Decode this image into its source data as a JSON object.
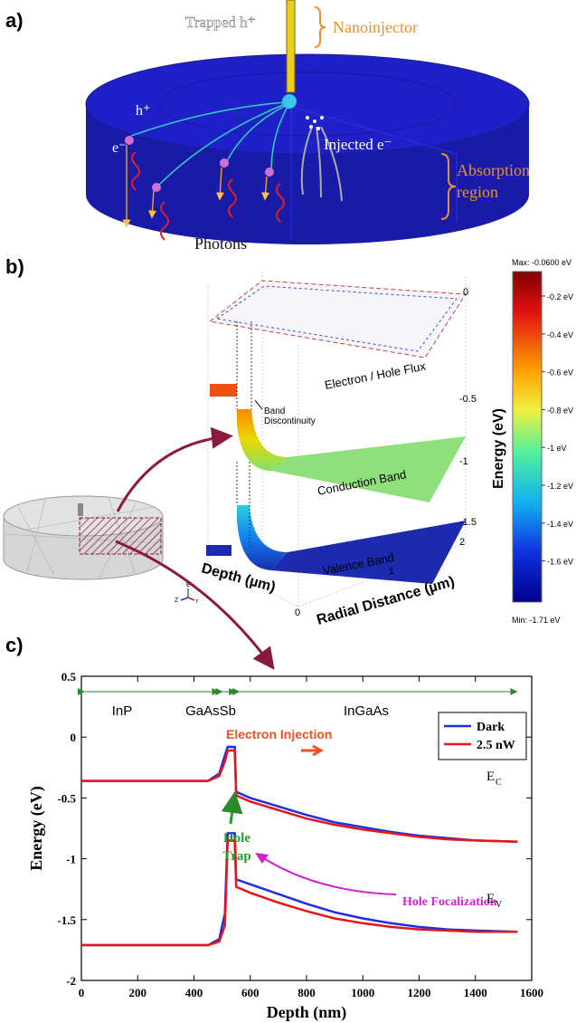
{
  "panel_a": {
    "label": "a)",
    "trapped": "Trapped h⁺",
    "nanoinjector": "Nanoinjector",
    "hole": "h⁺",
    "electron": "e⁻",
    "injected": "Injected e⁻",
    "absorption": [
      "Absorption",
      "region"
    ],
    "photons": "Photons"
  },
  "panel_b": {
    "label": "b)",
    "flux": "Electron / Hole Flux",
    "discontinuity": [
      "Band",
      "Discontinuity"
    ],
    "conduction": "Conduction Band",
    "valence": "Valence Band",
    "depth_axis": "Depth (µm)",
    "radial_axis": "Radial Distance (µm)",
    "energy_axis": "Energy (eV)",
    "energy_ticks": [
      "0",
      "-0.5",
      "-1",
      "-1.5"
    ],
    "radial_ticks": [
      "0",
      "1",
      "2"
    ],
    "triad": [
      "Z",
      "E",
      "r"
    ],
    "colorbar": {
      "max": "Max: -0.0600 eV",
      "min": "Min: -1.71 eV",
      "labels": [
        "-0.2 eV",
        "-0.4 eV",
        "-0.6 eV",
        "-0.8 eV",
        "-1 eV",
        "-1.2 eV",
        "-1.4 eV",
        "-1.6 eV"
      ]
    }
  },
  "panel_c": {
    "label": "c)"
  },
  "chart_data": {
    "type": "line",
    "xlabel": "Depth (nm)",
    "ylabel": "Energy (eV)",
    "x": [
      0,
      450,
      490,
      510,
      520,
      545,
      550,
      600,
      700,
      800,
      900,
      1000,
      1100,
      1200,
      1300,
      1400,
      1550
    ],
    "series": [
      {
        "name": "Dark",
        "color": "#1c2fe0",
        "values": [
          -0.36,
          -0.36,
          -0.3,
          -0.15,
          -0.08,
          -0.08,
          -0.45,
          -0.5,
          -0.57,
          -0.64,
          -0.7,
          -0.74,
          -0.78,
          -0.81,
          -0.83,
          -0.85,
          -0.86
        ]
      },
      {
        "name": "2.5 nW",
        "color": "#e8141c",
        "values": [
          -0.36,
          -0.36,
          -0.32,
          -0.2,
          -0.11,
          -0.11,
          -0.48,
          -0.53,
          -0.6,
          -0.67,
          -0.72,
          -0.76,
          -0.79,
          -0.82,
          -0.84,
          -0.85,
          -0.86
        ]
      },
      {
        "color": "#1c2fe0",
        "values": [
          -1.71,
          -1.71,
          -1.66,
          -1.45,
          -0.79,
          -0.79,
          -1.17,
          -1.21,
          -1.29,
          -1.37,
          -1.44,
          -1.49,
          -1.53,
          -1.56,
          -1.58,
          -1.59,
          -1.6
        ]
      },
      {
        "color": "#e8141c",
        "values": [
          -1.71,
          -1.71,
          -1.68,
          -1.55,
          -0.85,
          -0.85,
          -1.23,
          -1.28,
          -1.36,
          -1.43,
          -1.49,
          -1.53,
          -1.56,
          -1.58,
          -1.59,
          -1.6,
          -1.6
        ]
      }
    ],
    "xlim": [
      0,
      1600
    ],
    "xticks": [
      0,
      200,
      400,
      600,
      800,
      1000,
      1200,
      1400,
      1600
    ],
    "ylim": [
      -2,
      0.5
    ],
    "yticks": [
      -2,
      -1.5,
      -1,
      -0.5,
      0,
      0.5
    ],
    "legend": "upper right",
    "regions": [
      {
        "label": "InP",
        "range": [
          0,
          490
        ]
      },
      {
        "label": "GaAsSb",
        "range": [
          490,
          550
        ]
      },
      {
        "label": "InGaAs",
        "range": [
          550,
          1550
        ]
      }
    ],
    "annotations": {
      "electron_injection": "Electron Injection",
      "hole_trap": [
        "Hole",
        "Trap"
      ],
      "hole_focalization": "Hole Focalization",
      "ec": [
        "E",
        "C"
      ],
      "ev": [
        "E",
        "V"
      ]
    }
  }
}
